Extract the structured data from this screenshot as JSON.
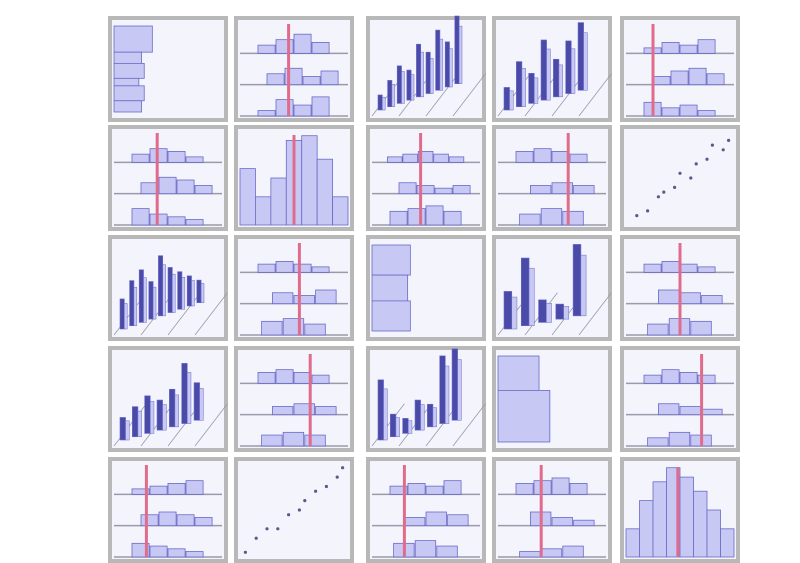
{
  "figure": {
    "corner_label": "",
    "row_labels": [
      "",
      "",
      "",
      "",
      ""
    ],
    "col_labels": [
      "",
      "",
      "",
      "",
      ""
    ]
  },
  "colors": {
    "panel_bg": "#f4f4fd",
    "panel_border": "#b8b8b8",
    "bar_fill": "#c8c8f4",
    "bar_stroke": "#6a6ac8",
    "dark_bar": "#4a4aa8",
    "red_line": "#e06b8b",
    "gridline": "#9a9aaa",
    "scatter_dot": "#5a5a8a"
  },
  "chart_data": {
    "type": "scatter-matrix",
    "rows": 5,
    "cols": 5,
    "panels": [
      {
        "row": 0,
        "col": 0,
        "kind": "hbars",
        "values": [
          0.35,
          0.15,
          0.2,
          0.1,
          0.2,
          0.15
        ]
      },
      {
        "row": 0,
        "col": 1,
        "kind": "tiered",
        "tiers": [
          [
            0.3,
            0.5,
            0.7,
            0.4
          ],
          [
            0.4,
            0.6,
            0.3,
            0.5
          ],
          [
            0.2,
            0.6,
            0.4,
            0.7
          ]
        ],
        "red": 0.45
      },
      {
        "row": 0,
        "col": 2,
        "kind": "three_d",
        "values": [
          0.2,
          0.35,
          0.5,
          0.4,
          0.7,
          0.55,
          0.8,
          0.6,
          0.9
        ]
      },
      {
        "row": 0,
        "col": 3,
        "kind": "three_d",
        "values": [
          0.3,
          0.6,
          0.4,
          0.8,
          0.5,
          0.7,
          0.9
        ]
      },
      {
        "row": 0,
        "col": 4,
        "kind": "tiered",
        "tiers": [
          [
            0.2,
            0.4,
            0.3,
            0.5
          ],
          [
            0.3,
            0.5,
            0.6,
            0.4
          ],
          [
            0.5,
            0.3,
            0.4,
            0.2
          ]
        ],
        "red": 0.25
      },
      {
        "row": 1,
        "col": 0,
        "kind": "tiered",
        "tiers": [
          [
            0.3,
            0.5,
            0.4,
            0.2
          ],
          [
            0.4,
            0.6,
            0.5,
            0.3
          ],
          [
            0.6,
            0.4,
            0.3,
            0.2
          ]
        ],
        "red": 0.4
      },
      {
        "row": 1,
        "col": 1,
        "kind": "vbars",
        "values": [
          0.6,
          0.3,
          0.5,
          0.9,
          0.95,
          0.7,
          0.3
        ],
        "red": 0.5
      },
      {
        "row": 1,
        "col": 2,
        "kind": "tiered",
        "tiers": [
          [
            0.2,
            0.3,
            0.4,
            0.3,
            0.2
          ],
          [
            0.4,
            0.3,
            0.2,
            0.3
          ],
          [
            0.5,
            0.6,
            0.7,
            0.5
          ]
        ],
        "red": 0.45
      },
      {
        "row": 1,
        "col": 3,
        "kind": "tiered",
        "tiers": [
          [
            0.4,
            0.5,
            0.4,
            0.3
          ],
          [
            0.3,
            0.4,
            0.3
          ],
          [
            0.4,
            0.6,
            0.5
          ]
        ],
        "red": 0.65
      },
      {
        "row": 1,
        "col": 4,
        "kind": "scatter",
        "points": [
          [
            0.1,
            0.1
          ],
          [
            0.2,
            0.15
          ],
          [
            0.3,
            0.3
          ],
          [
            0.35,
            0.35
          ],
          [
            0.45,
            0.4
          ],
          [
            0.5,
            0.55
          ],
          [
            0.6,
            0.5
          ],
          [
            0.65,
            0.65
          ],
          [
            0.75,
            0.7
          ],
          [
            0.8,
            0.85
          ],
          [
            0.9,
            0.8
          ],
          [
            0.95,
            0.9
          ]
        ]
      },
      {
        "row": 2,
        "col": 0,
        "kind": "three_d",
        "values": [
          0.4,
          0.6,
          0.7,
          0.5,
          0.8,
          0.6,
          0.5,
          0.4,
          0.3
        ]
      },
      {
        "row": 2,
        "col": 1,
        "kind": "tiered",
        "tiers": [
          [
            0.3,
            0.4,
            0.3,
            0.2
          ],
          [
            0.4,
            0.3,
            0.5
          ],
          [
            0.5,
            0.6,
            0.4
          ]
        ],
        "red": 0.55
      },
      {
        "row": 2,
        "col": 2,
        "kind": "hbars",
        "values": [
          0.35,
          0.3,
          0.35
        ]
      },
      {
        "row": 2,
        "col": 3,
        "kind": "three_d",
        "values": [
          0.5,
          0.9,
          0.3,
          0.2,
          0.95
        ]
      },
      {
        "row": 2,
        "col": 4,
        "kind": "tiered",
        "tiers": [
          [
            0.3,
            0.4,
            0.3,
            0.2
          ],
          [
            0.5,
            0.4,
            0.3
          ],
          [
            0.4,
            0.6,
            0.5
          ]
        ],
        "red": 0.5
      },
      {
        "row": 3,
        "col": 0,
        "kind": "three_d",
        "values": [
          0.3,
          0.4,
          0.5,
          0.4,
          0.5,
          0.8,
          0.5
        ]
      },
      {
        "row": 3,
        "col": 1,
        "kind": "tiered",
        "tiers": [
          [
            0.4,
            0.5,
            0.4,
            0.3
          ],
          [
            0.3,
            0.4,
            0.3
          ],
          [
            0.4,
            0.5,
            0.4
          ]
        ],
        "red": 0.65
      },
      {
        "row": 3,
        "col": 2,
        "kind": "three_d",
        "values": [
          0.8,
          0.3,
          0.2,
          0.4,
          0.3,
          0.9,
          0.95
        ]
      },
      {
        "row": 3,
        "col": 3,
        "kind": "hbars",
        "values": [
          0.4,
          0.6
        ]
      },
      {
        "row": 3,
        "col": 4,
        "kind": "tiered",
        "tiers": [
          [
            0.3,
            0.5,
            0.4,
            0.3
          ],
          [
            0.4,
            0.3,
            0.2
          ],
          [
            0.3,
            0.5,
            0.4
          ]
        ],
        "red": 0.7
      },
      {
        "row": 4,
        "col": 0,
        "kind": "tiered",
        "tiers": [
          [
            0.2,
            0.3,
            0.4,
            0.5
          ],
          [
            0.4,
            0.5,
            0.4,
            0.3
          ],
          [
            0.5,
            0.4,
            0.3,
            0.2
          ]
        ],
        "red": 0.3
      },
      {
        "row": 4,
        "col": 1,
        "kind": "scatter",
        "points": [
          [
            0.05,
            0.05
          ],
          [
            0.15,
            0.2
          ],
          [
            0.25,
            0.3
          ],
          [
            0.35,
            0.3
          ],
          [
            0.45,
            0.45
          ],
          [
            0.55,
            0.5
          ],
          [
            0.6,
            0.6
          ],
          [
            0.7,
            0.7
          ],
          [
            0.8,
            0.75
          ],
          [
            0.9,
            0.85
          ],
          [
            0.95,
            0.95
          ]
        ]
      },
      {
        "row": 4,
        "col": 2,
        "kind": "tiered",
        "tiers": [
          [
            0.3,
            0.4,
            0.3,
            0.5
          ],
          [
            0.3,
            0.5,
            0.4
          ],
          [
            0.5,
            0.6,
            0.4
          ]
        ],
        "red": 0.3
      },
      {
        "row": 4,
        "col": 3,
        "kind": "tiered",
        "tiers": [
          [
            0.4,
            0.5,
            0.6,
            0.4
          ],
          [
            0.5,
            0.3,
            0.2
          ],
          [
            0.2,
            0.3,
            0.4
          ]
        ],
        "red": 0.4
      },
      {
        "row": 4,
        "col": 4,
        "kind": "vbars",
        "values": [
          0.3,
          0.6,
          0.8,
          0.95,
          0.85,
          0.7,
          0.5,
          0.3
        ],
        "red": 0.48
      }
    ]
  }
}
